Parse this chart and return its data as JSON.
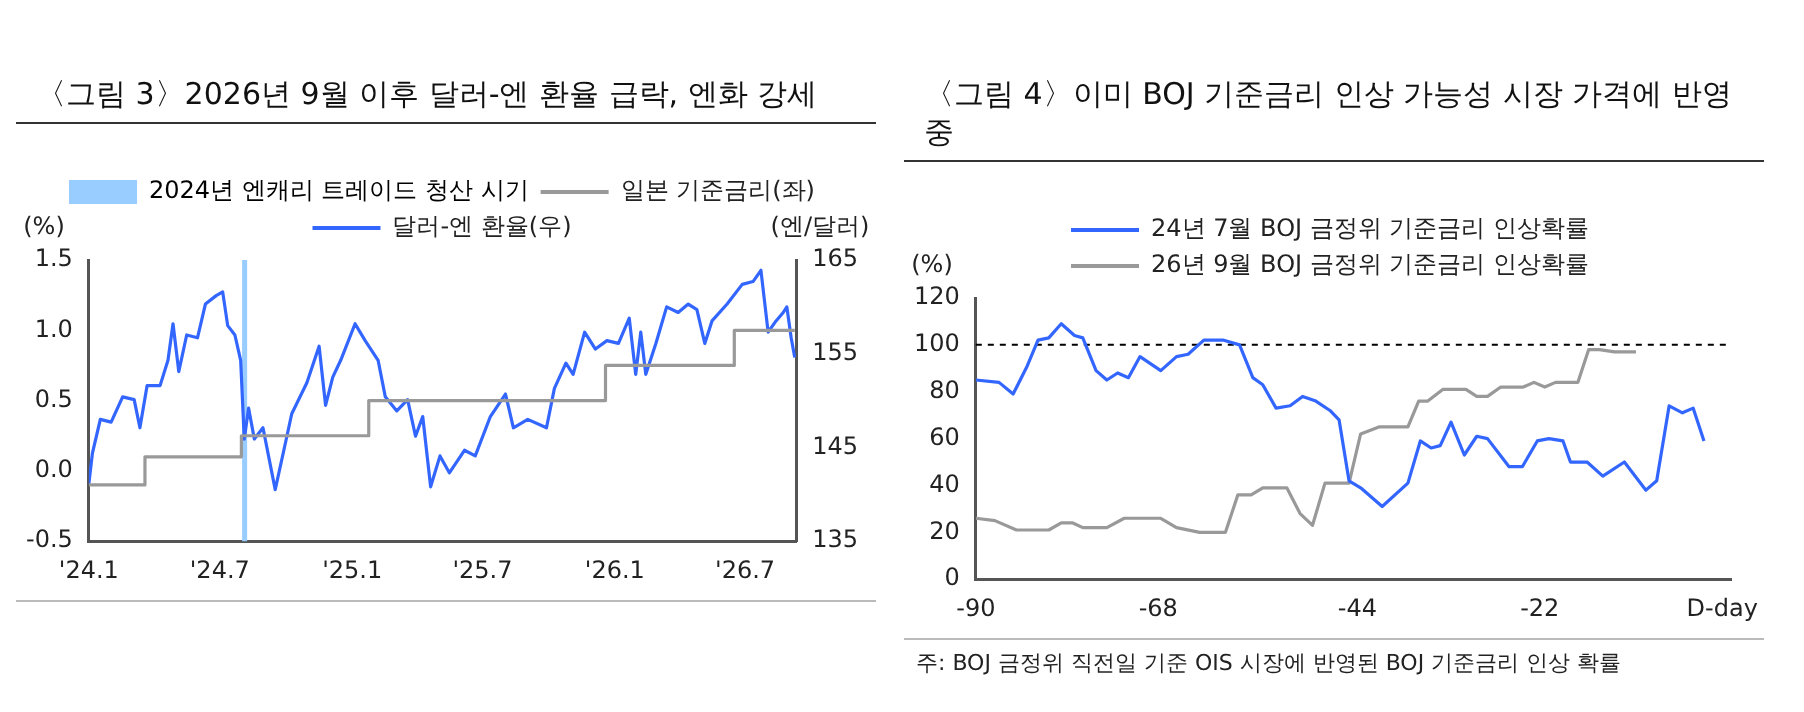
{
  "chart_data": [
    {
      "type": "line",
      "title": "〈그림 3〉2026년 9월 이후 달러-엔 환율 급락, 엔화 강세",
      "ylabel": "(%)",
      "y2label": "(엔/달러)",
      "legend": "top",
      "marker": "none",
      "grid": false,
      "xlim": [
        "2024-01-01",
        "2026-09-10"
      ],
      "xticks": [
        {
          "value": "2024-01-01",
          "label": "'24.1"
        },
        {
          "value": "2024-07-01",
          "label": "'24.7"
        },
        {
          "value": "2025-01-01",
          "label": "'25.1"
        },
        {
          "value": "2025-07-01",
          "label": "'25.7"
        },
        {
          "value": "2026-01-01",
          "label": "'26.1"
        },
        {
          "value": "2026-07-01",
          "label": "'26.7"
        }
      ],
      "ylim": [
        -0.5,
        1.5
      ],
      "yticks": [
        -0.5,
        {
          "value": 0,
          "label": "0.0"
        },
        0.5,
        {
          "value": 1,
          "label": "1.0"
        },
        1.5
      ],
      "y2lim": [
        135,
        165
      ],
      "y2ticks": [
        135,
        145,
        155,
        165
      ],
      "bands": [
        {
          "axis": "x",
          "from": "2024-08-01",
          "to": "2024-08-08",
          "label": "2024년 엔캐리 트레이드 청산 시기",
          "color": "#99ccff"
        }
      ],
      "series": [
        {
          "name": "일본 기준금리(좌)",
          "type": "step",
          "color": "#999999",
          "x": [
            "2024-01-01",
            "2024-03-19",
            "2024-07-31",
            "2025-01-24",
            "2025-12-19",
            "2026-06-16",
            "2026-09-08"
          ],
          "values": [
            -0.1,
            0.1,
            0.25,
            0.5,
            0.75,
            1.0,
            1.0
          ]
        },
        {
          "name": "달러-엔 환율(우)",
          "type": "line",
          "axis": "y2",
          "color": "#3366ff",
          "x": [
            "2024-01-01",
            "2024-01-06",
            "2024-01-17",
            "2024-02-01",
            "2024-02-17",
            "2024-03-04",
            "2024-03-12",
            "2024-03-22",
            "2024-04-09",
            "2024-04-20",
            "2024-04-27",
            "2024-05-05",
            "2024-05-16",
            "2024-05-31",
            "2024-06-11",
            "2024-06-26",
            "2024-07-05",
            "2024-07-12",
            "2024-07-22",
            "2024-07-30",
            "2024-08-04",
            "2024-08-10",
            "2024-08-18",
            "2024-08-30",
            "2024-09-16",
            "2024-09-28",
            "2024-10-09",
            "2024-10-30",
            "2024-11-16",
            "2024-11-25",
            "2024-12-05",
            "2024-12-16",
            "2025-01-05",
            "2025-01-19",
            "2025-02-06",
            "2025-02-16",
            "2025-03-04",
            "2025-03-19",
            "2025-03-30",
            "2025-04-09",
            "2025-04-20",
            "2025-05-03",
            "2025-05-16",
            "2025-06-06",
            "2025-06-21",
            "2025-07-12",
            "2025-08-02",
            "2025-08-13",
            "2025-09-02",
            "2025-09-28",
            "2025-10-09",
            "2025-10-25",
            "2025-11-04",
            "2025-11-20",
            "2025-12-05",
            "2025-12-21",
            "2026-01-06",
            "2026-01-21",
            "2026-01-30",
            "2026-02-06",
            "2026-02-13",
            "2026-02-27",
            "2026-03-14",
            "2026-03-30",
            "2026-04-13",
            "2026-04-25",
            "2026-05-06",
            "2026-05-16",
            "2026-06-06",
            "2026-06-27",
            "2026-07-12",
            "2026-07-23",
            "2026-08-02",
            "2026-08-13",
            "2026-08-23",
            "2026-08-28",
            "2026-09-03",
            "2026-09-08"
          ],
          "values": [
            141.1,
            144.4,
            148.0,
            147.7,
            150.4,
            150.1,
            147.1,
            151.6,
            151.6,
            154.3,
            158.2,
            153.1,
            157.0,
            156.7,
            160.3,
            161.2,
            161.6,
            158.0,
            157.0,
            154.3,
            145.9,
            149.2,
            145.9,
            147.1,
            140.5,
            144.7,
            148.6,
            151.9,
            155.8,
            149.5,
            152.5,
            154.3,
            158.2,
            156.4,
            154.3,
            150.4,
            148.9,
            150.1,
            146.2,
            148.3,
            140.8,
            144.1,
            142.3,
            144.7,
            144.1,
            148.3,
            150.7,
            147.1,
            148.0,
            147.1,
            151.3,
            154.0,
            152.8,
            157.3,
            155.5,
            156.4,
            156.1,
            158.8,
            152.8,
            157.3,
            152.8,
            156.1,
            160.0,
            159.4,
            160.3,
            159.7,
            156.1,
            158.5,
            160.3,
            162.4,
            162.7,
            163.9,
            157.3,
            158.5,
            159.4,
            160.0,
            156.7,
            154.6
          ]
        }
      ]
    },
    {
      "type": "line",
      "title": "〈그림 4〉이미 BOJ 기준금리 인상 가능성 시장 가격에 반영 중",
      "ylabel": "(%)",
      "legend": "top",
      "marker": "none",
      "grid": false,
      "xlim": [
        -90,
        1
      ],
      "xticks": [
        -90,
        -68,
        -44,
        -22,
        {
          "value": 0,
          "label": "D-day"
        }
      ],
      "ylim": [
        0,
        120
      ],
      "yticks": [
        0,
        20,
        40,
        60,
        80,
        100,
        120
      ],
      "ref_lines": [
        {
          "axis": "y",
          "value": 100,
          "color": "#000000",
          "line_style": "dashed"
        }
      ],
      "annotations": [
        "주: BOJ 금정위 직전일 기준 OIS 시장에 반영된 BOJ 기준금리 인상 확률"
      ],
      "series": [
        {
          "name": "24년 7월 BOJ 금정위 기준금리 인상확률",
          "type": "line",
          "color": "#3366ff",
          "x": [
            -90,
            -87.2,
            -85.5,
            -83.8,
            -82.5,
            -81.2,
            -79.7,
            -78.1,
            -77.1,
            -75.5,
            -74.2,
            -72.9,
            -71.6,
            -70.2,
            -67.7,
            -65.8,
            -64.4,
            -62.5,
            -60.1,
            -58.2,
            -56.6,
            -55.4,
            -53.8,
            -52.1,
            -50.6,
            -49.0,
            -47.3,
            -46.2,
            -45.0,
            -43.6,
            -41.0,
            -37.9,
            -36.4,
            -35.1,
            -34.0,
            -32.7,
            -31.1,
            -29.6,
            -28.3,
            -25.7,
            -24.1,
            -22.3,
            -20.9,
            -19.2,
            -18.3,
            -16.3,
            -14.4,
            -11.8,
            -9.2,
            -7.9,
            -6.4,
            -4.8,
            -3.5,
            -2.2
          ],
          "values": [
            85,
            84,
            79,
            91,
            102,
            103,
            109,
            104,
            103,
            89,
            85,
            88,
            86,
            95,
            89,
            95,
            96,
            102,
            102,
            100,
            86,
            83,
            73,
            74,
            78,
            76,
            72,
            68,
            42,
            39,
            31,
            41,
            59,
            56,
            57,
            67,
            53,
            61,
            60,
            48,
            48,
            59,
            60,
            59,
            50,
            50,
            44,
            50,
            38,
            42,
            74,
            71,
            73,
            59
          ]
        },
        {
          "name": "26년 9월 BOJ 금정위 기준금리 인상확률",
          "type": "line",
          "color": "#999999",
          "x": [
            -90,
            -87.7,
            -85.1,
            -81.2,
            -79.7,
            -78.3,
            -77.1,
            -74.2,
            -72.1,
            -67.7,
            -65.8,
            -63.0,
            -59.9,
            -58.4,
            -56.8,
            -55.4,
            -52.5,
            -50.9,
            -49.4,
            -47.9,
            -45.0,
            -43.6,
            -41.4,
            -37.9,
            -36.6,
            -35.5,
            -33.7,
            -30.9,
            -29.6,
            -28.3,
            -26.7,
            -24.0,
            -22.7,
            -21.4,
            -20.1,
            -17.4,
            -16.1,
            -14.8,
            -13.0,
            -10.4
          ],
          "values": [
            26,
            25,
            21,
            21,
            24,
            24,
            22,
            22,
            26,
            26,
            22,
            20,
            20,
            36,
            36,
            39,
            39,
            28,
            23,
            41,
            41,
            62,
            65,
            65,
            76,
            76,
            81,
            81,
            78,
            78,
            82,
            82,
            84,
            82,
            84,
            84,
            98,
            98,
            97,
            97
          ]
        }
      ]
    }
  ]
}
